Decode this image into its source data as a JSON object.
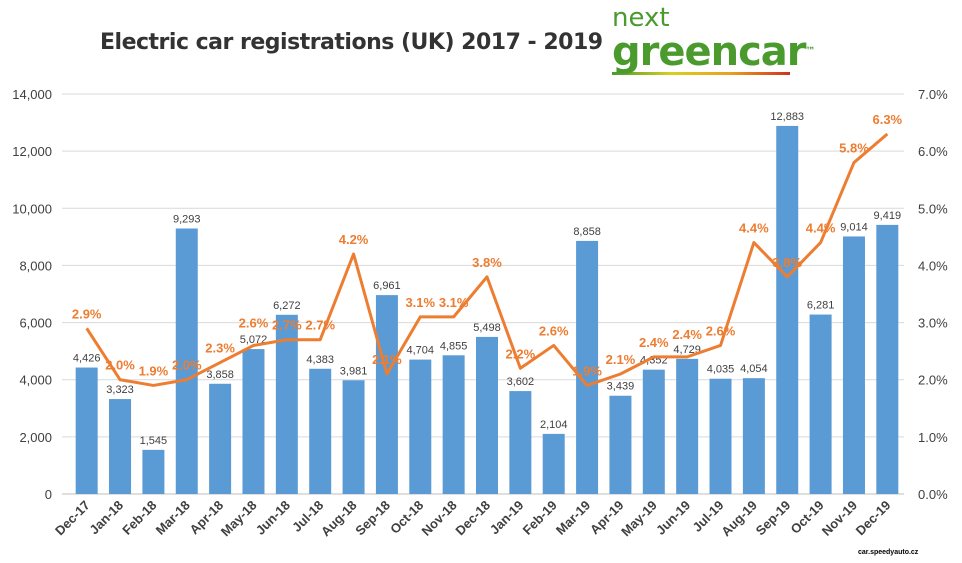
{
  "chart_data": {
    "type": "bar+line",
    "title": "Electric car registrations (UK) 2017 - 2019",
    "categories": [
      "Dec-17",
      "Jan-18",
      "Feb-18",
      "Mar-18",
      "Apr-18",
      "May-18",
      "Jun-18",
      "Jul-18",
      "Aug-18",
      "Sep-18",
      "Oct-18",
      "Nov-18",
      "Dec-18",
      "Jan-19",
      "Feb-19",
      "Mar-19",
      "Apr-19",
      "May-19",
      "Jun-19",
      "Jul-19",
      "Aug-19",
      "Sep-19",
      "Oct-19",
      "Nov-19",
      "Dec-19"
    ],
    "series": [
      {
        "type": "bar",
        "axis": "left",
        "color": "#5b9bd5",
        "values": [
          4426,
          3323,
          1545,
          9293,
          3858,
          5072,
          6272,
          4383,
          3981,
          6961,
          4704,
          4855,
          5498,
          3602,
          2104,
          8858,
          3439,
          4352,
          4729,
          4035,
          4054,
          12883,
          6281,
          9014,
          9419
        ],
        "labels": [
          "4,426",
          "3,323",
          "1,545",
          "9,293",
          "3,858",
          "5,072",
          "6,272",
          "4,383",
          "3,981",
          "6,961",
          "4,704",
          "4,855",
          "5,498",
          "3,602",
          "2,104",
          "8,858",
          "3,439",
          "4,352",
          "4,729",
          "4,035",
          "4,054",
          "12,883",
          "6,281",
          "9,014",
          "9,419"
        ]
      },
      {
        "type": "line",
        "axis": "right",
        "color": "#ed7d31",
        "values": [
          2.9,
          2.0,
          1.9,
          2.0,
          2.3,
          2.6,
          2.7,
          2.7,
          4.2,
          2.1,
          3.1,
          3.1,
          3.8,
          2.2,
          2.6,
          1.9,
          2.1,
          2.4,
          2.4,
          2.6,
          4.4,
          3.8,
          4.4,
          5.8,
          6.3
        ],
        "labels": [
          "2.9%",
          "2.0%",
          "1.9%",
          "2.0%",
          "2.3%",
          "2.6%",
          "2.7%",
          "2.7%",
          "4.2%",
          "2.1%",
          "3.1%",
          "3.1%",
          "3.8%",
          "2.2%",
          "2.6%",
          "1.9%",
          "2.1%",
          "2.4%",
          "2.4%",
          "2.6%",
          "4.4%",
          "3.8%",
          "4.4%",
          "5.8%",
          "6.3%"
        ]
      }
    ],
    "y_left": {
      "lim": [
        0,
        14000
      ],
      "ticks": [
        "0",
        "2,000",
        "4,000",
        "6,000",
        "8,000",
        "10,000",
        "12,000",
        "14,000"
      ]
    },
    "y_right": {
      "lim": [
        0,
        7
      ],
      "ticks": [
        "0.0%",
        "1.0%",
        "2.0%",
        "3.0%",
        "4.0%",
        "5.0%",
        "6.0%",
        "7.0%"
      ]
    },
    "grid": true,
    "legend": "none"
  },
  "logo": {
    "line1": "next",
    "line2": "greencar",
    "tm": "™"
  },
  "watermark": "car.speedyauto.cz"
}
